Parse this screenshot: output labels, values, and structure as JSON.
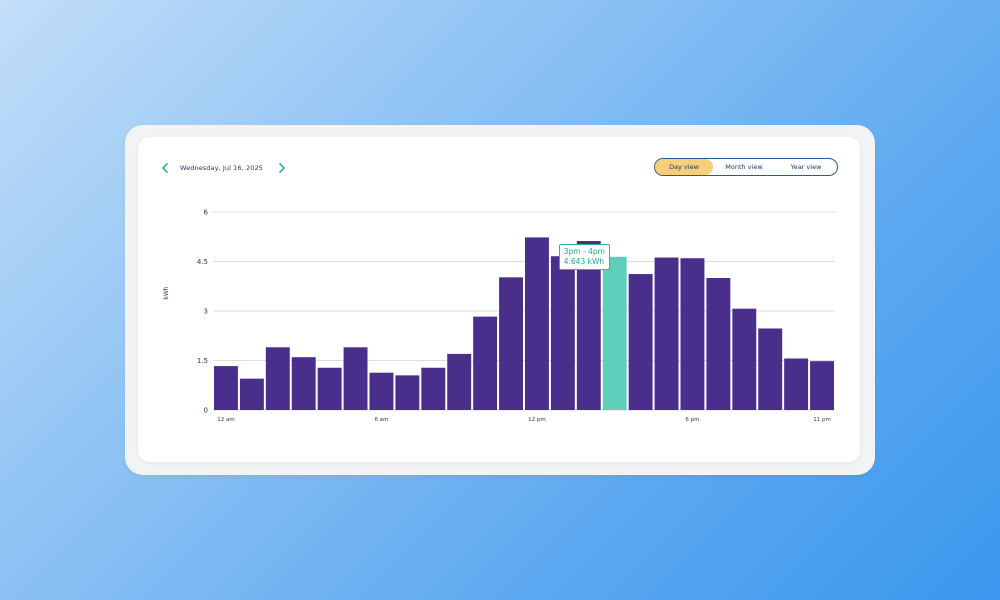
{
  "header": {
    "date": "Wednesday, Jul 16, 2025",
    "prev_icon": "chevron-left-icon",
    "next_icon": "chevron-right-icon"
  },
  "view_toggle": {
    "options": [
      "Day view",
      "Month view",
      "Year view"
    ],
    "active": "Day view"
  },
  "tooltip": {
    "range": "3pm - 4pm",
    "value": "4.643 kWh"
  },
  "colors": {
    "bar": "#4a2e8c",
    "bar_highlight": "#5fcfbb",
    "toggle_active": "#f7cf78",
    "grid": "#cfd3d8",
    "axis_text": "#2b3560",
    "accent": "#2eb59a"
  },
  "chart_data": {
    "type": "bar",
    "ylabel": "kWh",
    "ylim": [
      0,
      6
    ],
    "yticks": [
      "0",
      "1.5",
      "3",
      "4.5",
      "6"
    ],
    "ytick_values": [
      0,
      1.5,
      3,
      4.5,
      6
    ],
    "x_labels": [
      {
        "index": 0,
        "label": "12 am"
      },
      {
        "index": 6,
        "label": "6 am"
      },
      {
        "index": 12,
        "label": "12 pm"
      },
      {
        "index": 18,
        "label": "6 pm"
      },
      {
        "index": 23,
        "label": "11 pm"
      }
    ],
    "values": [
      1.33,
      0.95,
      1.9,
      1.6,
      1.28,
      1.9,
      1.13,
      1.05,
      1.28,
      1.7,
      2.83,
      4.02,
      5.23,
      4.66,
      5.12,
      4.643,
      4.12,
      4.62,
      4.6,
      4.0,
      3.07,
      2.47,
      1.56,
      1.48
    ],
    "highlight_index": 15,
    "grid": true
  }
}
